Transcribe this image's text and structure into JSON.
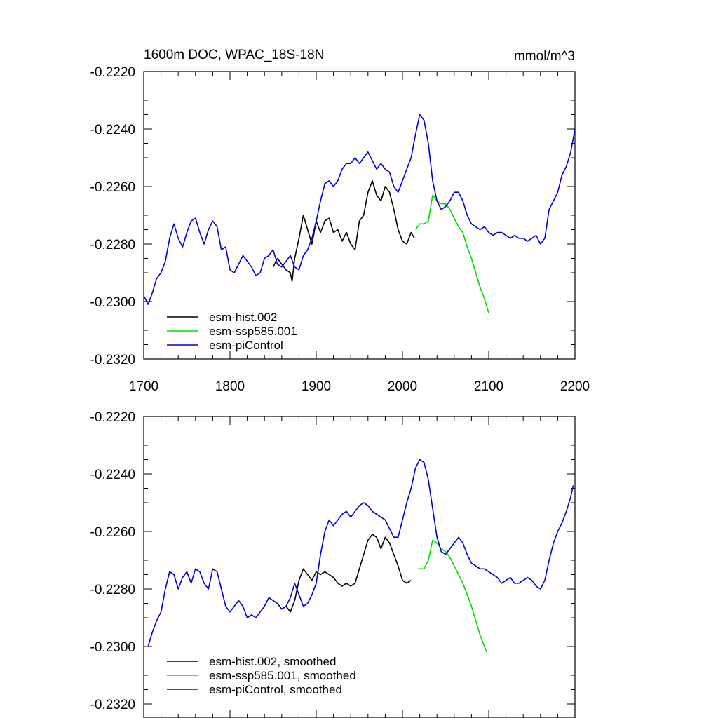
{
  "chart_data": [
    {
      "type": "line",
      "title": "1600m DOC, WPAC_18S-18N",
      "units": "mmol/m^3",
      "xlim": [
        1700,
        2200
      ],
      "ylim": [
        -0.232,
        -0.222
      ],
      "x_ticks": [
        "1700",
        "1800",
        "1900",
        "2000",
        "2100",
        "2200"
      ],
      "y_ticks": [
        "-0.2220",
        "-0.2240",
        "-0.2260",
        "-0.2280",
        "-0.2300",
        "-0.2320"
      ],
      "legend": "lower-left",
      "series": [
        {
          "name": "esm-hist.002",
          "color": "#000000",
          "x": [
            1850,
            1855,
            1860,
            1865,
            1870,
            1872,
            1875,
            1880,
            1885,
            1890,
            1895,
            1900,
            1905,
            1910,
            1915,
            1920,
            1925,
            1930,
            1935,
            1940,
            1945,
            1950,
            1955,
            1960,
            1965,
            1970,
            1975,
            1980,
            1985,
            1990,
            1995,
            2000,
            2005,
            2010,
            2014
          ],
          "y": [
            -0.2288,
            -0.2285,
            -0.2287,
            -0.2289,
            -0.229,
            -0.2293,
            -0.2285,
            -0.2278,
            -0.227,
            -0.2275,
            -0.228,
            -0.2272,
            -0.2276,
            -0.2272,
            -0.2271,
            -0.2276,
            -0.2275,
            -0.2279,
            -0.2276,
            -0.228,
            -0.2282,
            -0.2272,
            -0.227,
            -0.2262,
            -0.2258,
            -0.2263,
            -0.2265,
            -0.226,
            -0.2262,
            -0.2268,
            -0.2275,
            -0.2279,
            -0.228,
            -0.2276,
            -0.2278
          ]
        },
        {
          "name": "esm-ssp585.001",
          "color": "#00dd00",
          "x": [
            2015,
            2020,
            2025,
            2030,
            2035,
            2040,
            2045,
            2050,
            2055,
            2060,
            2065,
            2070,
            2075,
            2080,
            2085,
            2090,
            2095,
            2100
          ],
          "y": [
            -0.2275,
            -0.2273,
            -0.2273,
            -0.2272,
            -0.2263,
            -0.2265,
            -0.2266,
            -0.2266,
            -0.2268,
            -0.2271,
            -0.2274,
            -0.2276,
            -0.2281,
            -0.2285,
            -0.229,
            -0.2295,
            -0.2299,
            -0.2304
          ]
        },
        {
          "name": "esm-piControl",
          "color": "#0000dd",
          "x": [
            1700,
            1705,
            1710,
            1715,
            1720,
            1725,
            1730,
            1735,
            1740,
            1745,
            1750,
            1755,
            1760,
            1765,
            1770,
            1775,
            1780,
            1785,
            1790,
            1795,
            1800,
            1805,
            1810,
            1815,
            1820,
            1825,
            1830,
            1835,
            1840,
            1845,
            1850,
            1855,
            1860,
            1865,
            1870,
            1875,
            1880,
            1885,
            1890,
            1895,
            1900,
            1905,
            1910,
            1915,
            1920,
            1925,
            1930,
            1935,
            1940,
            1945,
            1950,
            1955,
            1960,
            1965,
            1970,
            1975,
            1980,
            1985,
            1990,
            1995,
            2000,
            2005,
            2010,
            2015,
            2020,
            2025,
            2030,
            2035,
            2040,
            2045,
            2050,
            2055,
            2060,
            2065,
            2070,
            2075,
            2080,
            2085,
            2090,
            2095,
            2100,
            2105,
            2110,
            2115,
            2120,
            2125,
            2130,
            2135,
            2140,
            2145,
            2150,
            2155,
            2160,
            2165,
            2170,
            2175,
            2180,
            2185,
            2190,
            2195,
            2200
          ],
          "y": [
            -0.2298,
            -0.2301,
            -0.2297,
            -0.2292,
            -0.229,
            -0.2286,
            -0.2278,
            -0.2273,
            -0.2278,
            -0.2281,
            -0.2276,
            -0.2272,
            -0.2271,
            -0.2276,
            -0.228,
            -0.2275,
            -0.2272,
            -0.2274,
            -0.2282,
            -0.2281,
            -0.2289,
            -0.229,
            -0.2287,
            -0.2284,
            -0.2286,
            -0.2288,
            -0.2291,
            -0.229,
            -0.2285,
            -0.2284,
            -0.2282,
            -0.2287,
            -0.2288,
            -0.2286,
            -0.2284,
            -0.2288,
            -0.2289,
            -0.2284,
            -0.2282,
            -0.2278,
            -0.2272,
            -0.2265,
            -0.2259,
            -0.2258,
            -0.226,
            -0.2258,
            -0.2254,
            -0.2252,
            -0.2252,
            -0.225,
            -0.2252,
            -0.225,
            -0.2248,
            -0.2251,
            -0.2254,
            -0.2252,
            -0.2254,
            -0.2255,
            -0.226,
            -0.2262,
            -0.2258,
            -0.2254,
            -0.225,
            -0.2242,
            -0.2235,
            -0.2237,
            -0.2245,
            -0.2258,
            -0.2265,
            -0.2268,
            -0.2267,
            -0.2265,
            -0.2262,
            -0.2262,
            -0.2265,
            -0.227,
            -0.2273,
            -0.2274,
            -0.2275,
            -0.2274,
            -0.2276,
            -0.2277,
            -0.2276,
            -0.2276,
            -0.2277,
            -0.2278,
            -0.2277,
            -0.2278,
            -0.2278,
            -0.2279,
            -0.2278,
            -0.2277,
            -0.228,
            -0.2278,
            -0.2268,
            -0.2265,
            -0.2262,
            -0.2256,
            -0.2253,
            -0.2248,
            -0.224
          ]
        }
      ]
    },
    {
      "type": "line",
      "xlim": [
        1700,
        2200
      ],
      "ylim": [
        -0.232,
        -0.222
      ],
      "y_ticks": [
        "-0.2220",
        "-0.2240",
        "-0.2260",
        "-0.2280",
        "-0.2300",
        "-0.2320"
      ],
      "legend": "lower-left",
      "series": [
        {
          "name": "esm-hist.002, smoothed",
          "color": "#000000",
          "x": [
            1855,
            1860,
            1865,
            1870,
            1875,
            1880,
            1885,
            1890,
            1895,
            1900,
            1905,
            1910,
            1915,
            1920,
            1925,
            1930,
            1935,
            1940,
            1945,
            1950,
            1955,
            1960,
            1965,
            1970,
            1975,
            1980,
            1985,
            1990,
            1995,
            2000,
            2005,
            2010
          ],
          "y": [
            -0.2285,
            -0.2287,
            -0.2286,
            -0.2288,
            -0.2284,
            -0.2277,
            -0.2273,
            -0.2275,
            -0.2277,
            -0.2274,
            -0.2275,
            -0.2274,
            -0.2275,
            -0.2276,
            -0.2278,
            -0.2279,
            -0.2278,
            -0.2279,
            -0.2278,
            -0.2273,
            -0.2268,
            -0.2263,
            -0.2261,
            -0.2262,
            -0.2266,
            -0.2262,
            -0.2264,
            -0.2268,
            -0.2272,
            -0.2277,
            -0.2278,
            -0.2277
          ]
        },
        {
          "name": "esm-ssp585.001, smoothed",
          "color": "#00dd00",
          "x": [
            2018,
            2025,
            2030,
            2035,
            2040,
            2045,
            2050,
            2055,
            2060,
            2065,
            2070,
            2075,
            2080,
            2085,
            2090,
            2095,
            2098
          ],
          "y": [
            -0.2273,
            -0.2273,
            -0.227,
            -0.2263,
            -0.2264,
            -0.2266,
            -0.2267,
            -0.2269,
            -0.2272,
            -0.2275,
            -0.2278,
            -0.2282,
            -0.2286,
            -0.2291,
            -0.2296,
            -0.23,
            -0.2302
          ]
        },
        {
          "name": "esm-piControl, smoothed",
          "color": "#0000dd",
          "x": [
            1705,
            1710,
            1715,
            1720,
            1725,
            1730,
            1735,
            1740,
            1745,
            1750,
            1755,
            1760,
            1765,
            1770,
            1775,
            1780,
            1785,
            1790,
            1795,
            1800,
            1805,
            1810,
            1815,
            1820,
            1825,
            1830,
            1835,
            1840,
            1845,
            1850,
            1855,
            1860,
            1865,
            1870,
            1875,
            1880,
            1885,
            1890,
            1895,
            1900,
            1905,
            1910,
            1915,
            1920,
            1925,
            1930,
            1935,
            1940,
            1945,
            1950,
            1955,
            1960,
            1965,
            1970,
            1975,
            1980,
            1985,
            1990,
            1995,
            2000,
            2005,
            2010,
            2015,
            2020,
            2025,
            2030,
            2035,
            2040,
            2045,
            2050,
            2055,
            2060,
            2065,
            2070,
            2075,
            2080,
            2085,
            2090,
            2095,
            2100,
            2105,
            2110,
            2115,
            2120,
            2125,
            2130,
            2135,
            2140,
            2145,
            2150,
            2155,
            2160,
            2165,
            2170,
            2175,
            2180,
            2185,
            2190,
            2195,
            2198
          ],
          "y": [
            -0.23,
            -0.2295,
            -0.2291,
            -0.2288,
            -0.228,
            -0.2274,
            -0.2275,
            -0.228,
            -0.2276,
            -0.2274,
            -0.2278,
            -0.2273,
            -0.2274,
            -0.2278,
            -0.228,
            -0.2273,
            -0.2274,
            -0.228,
            -0.2286,
            -0.2288,
            -0.2286,
            -0.2284,
            -0.2286,
            -0.229,
            -0.2289,
            -0.229,
            -0.2288,
            -0.2286,
            -0.2283,
            -0.2284,
            -0.2285,
            -0.2287,
            -0.2286,
            -0.2283,
            -0.2278,
            -0.2282,
            -0.2286,
            -0.2285,
            -0.2282,
            -0.2278,
            -0.2268,
            -0.226,
            -0.2256,
            -0.2258,
            -0.2256,
            -0.2254,
            -0.2253,
            -0.2255,
            -0.2253,
            -0.2251,
            -0.225,
            -0.2251,
            -0.2253,
            -0.2254,
            -0.2255,
            -0.2256,
            -0.2259,
            -0.2262,
            -0.2262,
            -0.2256,
            -0.225,
            -0.2245,
            -0.2238,
            -0.2235,
            -0.2236,
            -0.2242,
            -0.2252,
            -0.2262,
            -0.2267,
            -0.2268,
            -0.2266,
            -0.2264,
            -0.2262,
            -0.2264,
            -0.2268,
            -0.2271,
            -0.2272,
            -0.2273,
            -0.2273,
            -0.2274,
            -0.2275,
            -0.2276,
            -0.2278,
            -0.2277,
            -0.2276,
            -0.2278,
            -0.2278,
            -0.2277,
            -0.2276,
            -0.2277,
            -0.2279,
            -0.228,
            -0.2277,
            -0.227,
            -0.2264,
            -0.226,
            -0.2257,
            -0.2253,
            -0.2248,
            -0.2244
          ]
        }
      ]
    }
  ]
}
